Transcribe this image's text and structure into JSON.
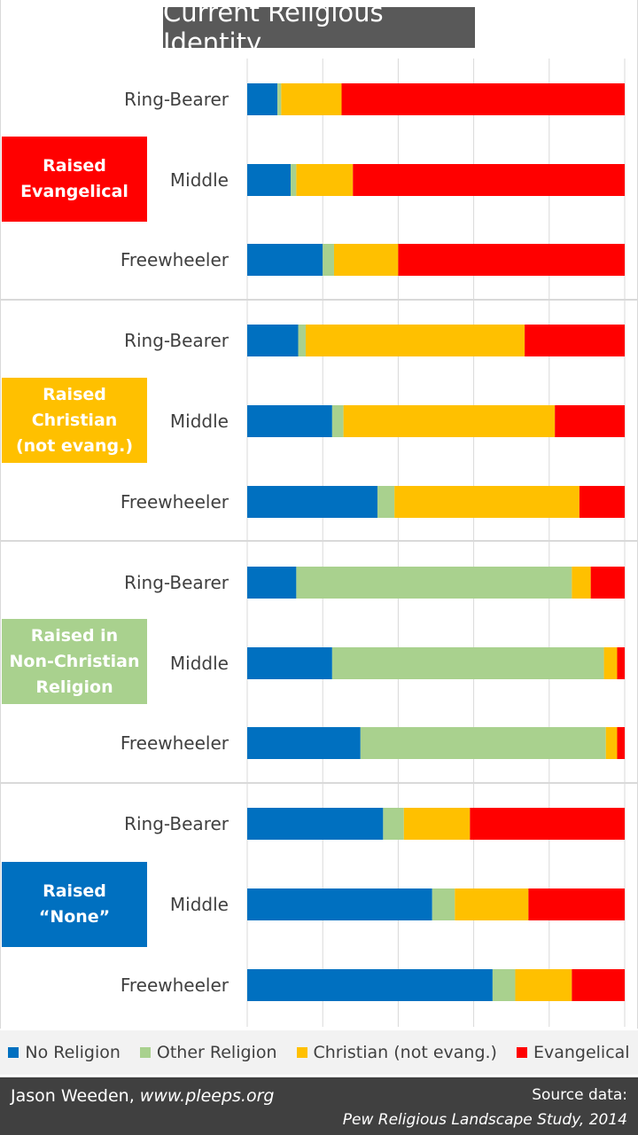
{
  "title": "Current Religious Identity",
  "colors": {
    "no_religion": "#0070c0",
    "other_religion": "#a9d18e",
    "christian_not_evang": "#ffc000",
    "evangelical": "#ff0000",
    "gridline": "#d9d9d9",
    "separator": "#d9d9d9"
  },
  "legend": [
    {
      "label": "No Religion",
      "color": "#0070c0"
    },
    {
      "label": "Other Religion",
      "color": "#a9d18e"
    },
    {
      "label": "Christian (not evang.)",
      "color": "#ffc000"
    },
    {
      "label": "Evangelical",
      "color": "#ff0000"
    }
  ],
  "footer": {
    "author": "Jason Weeden, ",
    "url": "www.pleeps.org",
    "source_label": "Source data:",
    "source_ref": "Pew Religious Landscape Study, 2014"
  },
  "chart_data": {
    "type": "bar",
    "orientation": "horizontal",
    "stacked": "percent",
    "xlim": [
      0,
      100
    ],
    "grid": true,
    "legend_position": "bottom",
    "series_names": [
      "No Religion",
      "Other Religion",
      "Christian (not evang.)",
      "Evangelical"
    ],
    "groups": [
      {
        "label_lines": [
          "Raised",
          "Evangelical"
        ],
        "color": "#ff0000",
        "rows": [
          {
            "label": "Ring-Bearer",
            "values": [
              8,
              1,
              16,
              75
            ]
          },
          {
            "label": "Middle",
            "values": [
              11.5,
              1.5,
              15,
              72
            ]
          },
          {
            "label": "Freewheeler",
            "values": [
              20,
              3,
              17,
              60
            ]
          }
        ]
      },
      {
        "label_lines": [
          "Raised",
          "Christian",
          "(not evang.)"
        ],
        "color": "#ffc000",
        "rows": [
          {
            "label": "Ring-Bearer",
            "values": [
              13.5,
              2,
              58,
              26.5
            ]
          },
          {
            "label": "Middle",
            "values": [
              22.5,
              3,
              56,
              18.5
            ]
          },
          {
            "label": "Freewheeler",
            "values": [
              34.5,
              4.5,
              49,
              12
            ]
          }
        ]
      },
      {
        "label_lines": [
          "Raised in",
          "Non-Christian",
          "Religion"
        ],
        "color": "#a9d18e",
        "rows": [
          {
            "label": "Ring-Bearer",
            "values": [
              13,
              73,
              5,
              9
            ]
          },
          {
            "label": "Middle",
            "values": [
              22.5,
              72,
              3.5,
              2
            ]
          },
          {
            "label": "Freewheeler",
            "values": [
              30,
              65,
              3,
              2
            ]
          }
        ]
      },
      {
        "label_lines": [
          "Raised",
          "“None”"
        ],
        "color": "#0070c0",
        "rows": [
          {
            "label": "Ring-Bearer",
            "values": [
              36,
              5.5,
              17.5,
              41
            ]
          },
          {
            "label": "Middle",
            "values": [
              49,
              6,
              19.5,
              25.5
            ]
          },
          {
            "label": "Freewheeler",
            "values": [
              65,
              6,
              15,
              14
            ]
          }
        ]
      }
    ]
  }
}
